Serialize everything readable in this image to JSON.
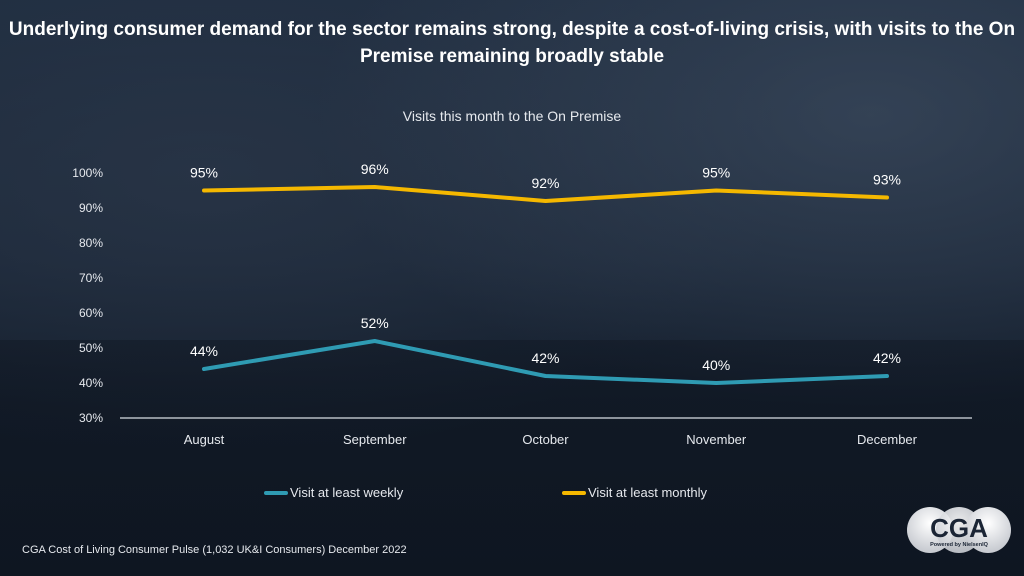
{
  "headline": "Underlying consumer demand for the sector remains strong, despite a cost-of-living crisis, with visits to the On Premise remaining broadly stable",
  "source": "CGA Cost of Living Consumer Pulse (1,032 UK&I Consumers) December 2022",
  "logo": {
    "text": "CGA",
    "tagline": "Powered by NielsenIQ"
  },
  "chart_data": {
    "type": "line",
    "title": "Visits this month to the On Premise",
    "xlabel": "",
    "ylabel": "",
    "categories": [
      "August",
      "September",
      "October",
      "November",
      "December"
    ],
    "ylim": [
      30,
      100
    ],
    "yticks": [
      30,
      40,
      50,
      60,
      70,
      80,
      90,
      100
    ],
    "ytick_labels": [
      "30%",
      "40%",
      "50%",
      "60%",
      "70%",
      "80%",
      "90%",
      "100%"
    ],
    "grid": false,
    "legend_position": "bottom",
    "series": [
      {
        "name": "Visit at least weekly",
        "color": "#2f9bb3",
        "values": [
          44,
          52,
          42,
          40,
          42
        ],
        "labels": [
          "44%",
          "52%",
          "42%",
          "40%",
          "42%"
        ]
      },
      {
        "name": "Visit at least monthly",
        "color": "#f5b800",
        "values": [
          95,
          96,
          92,
          95,
          93
        ],
        "labels": [
          "95%",
          "96%",
          "92%",
          "95%",
          "93%"
        ]
      }
    ]
  }
}
